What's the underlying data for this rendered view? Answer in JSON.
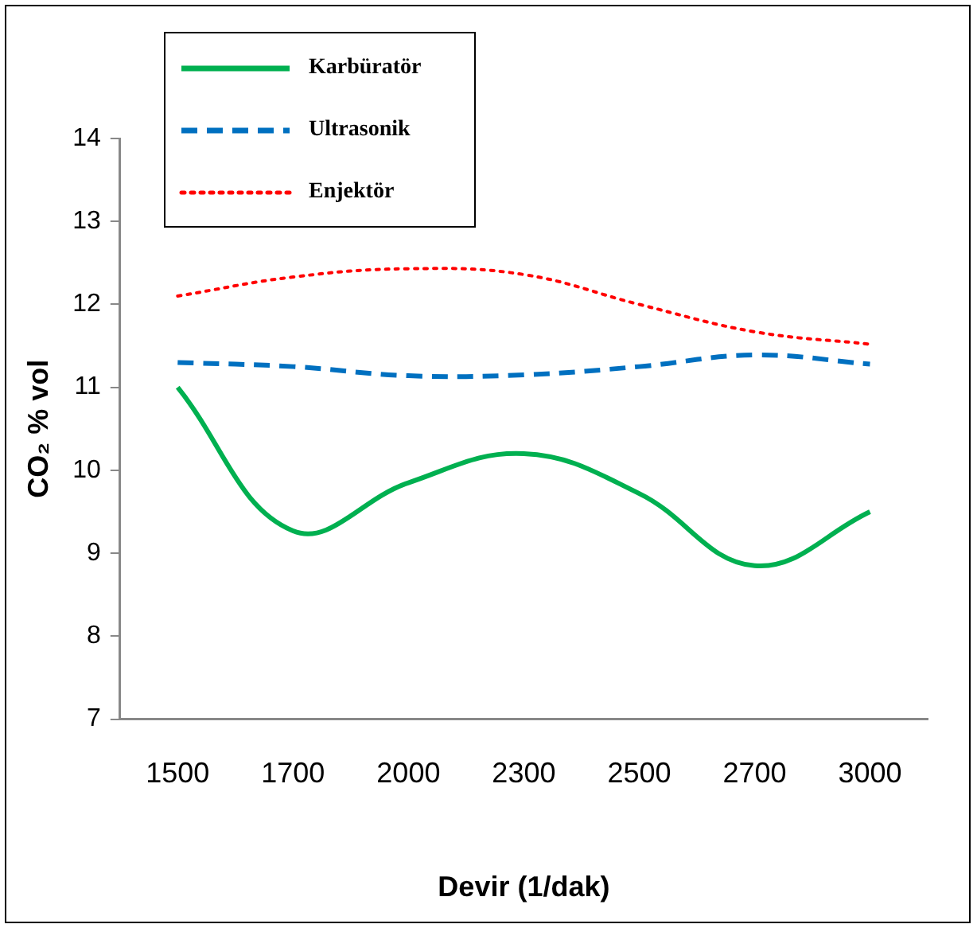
{
  "chart_data": {
    "type": "line",
    "xlabel": "Devir (1/dak)",
    "ylabel": "CO₂ % vol",
    "categories": [
      "1500",
      "1700",
      "2000",
      "2300",
      "2500",
      "2700",
      "3000"
    ],
    "series": [
      {
        "name": "Karbüratör",
        "color": "#00b050",
        "line_style": "solid",
        "values": [
          11.0,
          9.27,
          9.85,
          10.2,
          9.72,
          8.85,
          9.5
        ]
      },
      {
        "name": "Ultrasonik",
        "color": "#0070c0",
        "line_style": "dashed",
        "values": [
          11.3,
          11.25,
          11.14,
          11.15,
          11.25,
          11.39,
          11.28
        ]
      },
      {
        "name": "Enjektör",
        "color": "#ff0000",
        "line_style": "dotted",
        "values": [
          12.1,
          12.33,
          12.43,
          12.36,
          12.0,
          11.67,
          11.52
        ]
      }
    ],
    "ylim": [
      7,
      14
    ],
    "yticks": [
      7,
      8,
      9,
      10,
      11,
      12,
      13,
      14
    ],
    "grid": false,
    "legend": "top left",
    "marker": "none"
  }
}
